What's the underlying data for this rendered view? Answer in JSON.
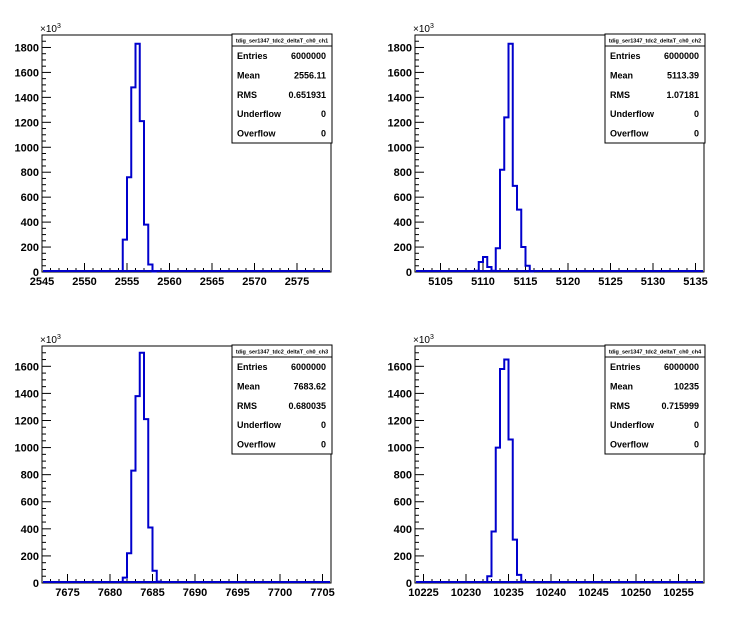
{
  "chart_data": [
    {
      "type": "bar",
      "title": "tdig_ser1347_tdc2_deltaT_ch0_ch1",
      "y_exponent": "3",
      "xlim": [
        2545,
        2579
      ],
      "ylim": [
        0,
        1900
      ],
      "x_ticks": [
        2545,
        2550,
        2555,
        2560,
        2565,
        2570,
        2575
      ],
      "y_ticks": [
        0,
        200,
        400,
        600,
        800,
        1000,
        1200,
        1400,
        1600,
        1800
      ],
      "x_tick_labels": [
        "2545",
        "2550",
        "2555",
        "2560",
        "2565",
        "2570",
        "2575"
      ],
      "y_tick_labels": [
        "0",
        "200",
        "400",
        "600",
        "800",
        "1000",
        "1200",
        "1400",
        "1600",
        "1800"
      ],
      "bin_width": 0.5,
      "bin_starts": [
        2554,
        2554.5,
        2555,
        2555.5,
        2556,
        2556.5,
        2557,
        2557.5,
        2558
      ],
      "values": [
        8,
        260,
        760,
        1480,
        1830,
        1210,
        380,
        60,
        4
      ],
      "stats": {
        "Entries": "6000000",
        "Mean": "2556.11",
        "RMS": "0.651931",
        "Underflow": "0",
        "Overflow": "0"
      },
      "line_color": "#0000cc"
    },
    {
      "type": "bar",
      "title": "tdig_ser1347_tdc2_deltaT_ch0_ch2",
      "y_exponent": "3",
      "xlim": [
        5102,
        5136
      ],
      "ylim": [
        0,
        1900
      ],
      "x_ticks": [
        5105,
        5110,
        5115,
        5120,
        5125,
        5130,
        5135
      ],
      "y_ticks": [
        0,
        200,
        400,
        600,
        800,
        1000,
        1200,
        1400,
        1600,
        1800
      ],
      "x_tick_labels": [
        "5105",
        "5110",
        "5115",
        "5120",
        "5125",
        "5130",
        "5135"
      ],
      "y_tick_labels": [
        "0",
        "200",
        "400",
        "600",
        "800",
        "1000",
        "1200",
        "1400",
        "1600",
        "1800"
      ],
      "bin_width": 0.5,
      "bin_starts": [
        5109,
        5109.5,
        5110,
        5110.5,
        5111,
        5111.5,
        5112,
        5112.5,
        5113,
        5113.5,
        5114,
        5114.5,
        5115,
        5115.5
      ],
      "values": [
        10,
        80,
        120,
        40,
        10,
        190,
        820,
        1240,
        1830,
        690,
        500,
        200,
        50,
        5
      ],
      "stats": {
        "Entries": "6000000",
        "Mean": "5113.39",
        "RMS": "1.07181",
        "Underflow": "0",
        "Overflow": "0"
      },
      "line_color": "#0000cc"
    },
    {
      "type": "bar",
      "title": "tdig_ser1347_tdc2_deltaT_ch0_ch3",
      "y_exponent": "3",
      "xlim": [
        7672,
        7706
      ],
      "ylim": [
        0,
        1750
      ],
      "x_ticks": [
        7675,
        7680,
        7685,
        7690,
        7695,
        7700,
        7705
      ],
      "y_ticks": [
        0,
        200,
        400,
        600,
        800,
        1000,
        1200,
        1400,
        1600
      ],
      "x_tick_labels": [
        "7675",
        "7680",
        "7685",
        "7690",
        "7695",
        "7700",
        "7705"
      ],
      "y_tick_labels": [
        "0",
        "200",
        "400",
        "600",
        "800",
        "1000",
        "1200",
        "1400",
        "1600"
      ],
      "bin_width": 0.5,
      "bin_starts": [
        7681.5,
        7682,
        7682.5,
        7683,
        7683.5,
        7684,
        7684.5,
        7685,
        7685.5
      ],
      "values": [
        40,
        220,
        830,
        1380,
        1700,
        1210,
        410,
        90,
        10
      ],
      "stats": {
        "Entries": "6000000",
        "Mean": "7683.62",
        "RMS": "0.680035",
        "Underflow": "0",
        "Overflow": "0"
      },
      "line_color": "#0000cc"
    },
    {
      "type": "bar",
      "title": "tdig_ser1347_tdc2_deltaT_ch0_ch4",
      "y_exponent": "3",
      "xlim": [
        10224,
        10258
      ],
      "ylim": [
        0,
        1750
      ],
      "x_ticks": [
        10225,
        10230,
        10235,
        10240,
        10245,
        10250,
        10255
      ],
      "y_ticks": [
        0,
        200,
        400,
        600,
        800,
        1000,
        1200,
        1400,
        1600
      ],
      "x_tick_labels": [
        "10225",
        "10230",
        "10235",
        "10240",
        "10245",
        "10250",
        "10255"
      ],
      "y_tick_labels": [
        "0",
        "200",
        "400",
        "600",
        "800",
        "1000",
        "1200",
        "1400",
        "1600"
      ],
      "bin_width": 0.5,
      "bin_starts": [
        10232.5,
        10233,
        10233.5,
        10234,
        10234.5,
        10235,
        10235.5,
        10236,
        10236.5
      ],
      "values": [
        50,
        380,
        1000,
        1580,
        1650,
        1060,
        320,
        60,
        10
      ],
      "stats": {
        "Entries": "6000000",
        "Mean": "10235",
        "RMS": "0.715999",
        "Underflow": "0",
        "Overflow": "0"
      },
      "line_color": "#0000cc"
    }
  ]
}
